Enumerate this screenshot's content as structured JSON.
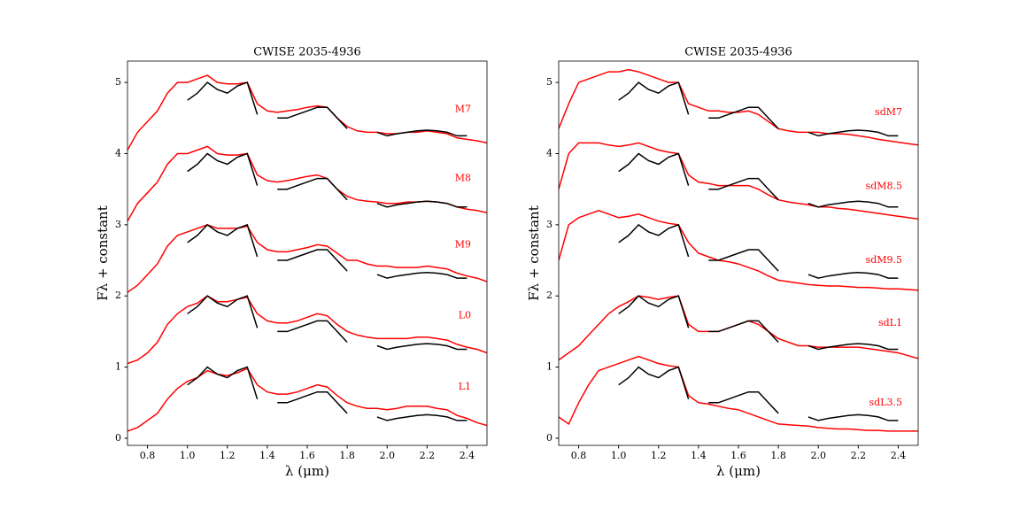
{
  "chart_data": [
    {
      "type": "line",
      "title": "CWISE 2035-4936",
      "xlabel": "λ (μm)",
      "ylabel": "Fλ  +  constant",
      "xlim": [
        0.7,
        2.5
      ],
      "ylim": [
        -0.1,
        5.3
      ],
      "xticks": [
        0.8,
        {
          "value": 1,
          "label": "1.0"
        },
        1.2,
        1.4,
        1.6,
        1.8,
        {
          "value": 2,
          "label": "2.0"
        },
        2.2,
        2.4
      ],
      "yticks": [
        0,
        1,
        2,
        3,
        4,
        5
      ],
      "x": [
        0.7,
        0.75,
        0.8,
        0.85,
        0.9,
        0.95,
        1.0,
        1.05,
        1.1,
        1.15,
        1.2,
        1.25,
        1.3,
        1.35,
        1.4,
        1.45,
        1.5,
        1.55,
        1.6,
        1.65,
        1.7,
        1.75,
        1.8,
        1.85,
        1.9,
        1.95,
        2.0,
        2.05,
        2.1,
        2.15,
        2.2,
        2.25,
        2.3,
        2.35,
        2.4,
        2.45,
        2.5
      ],
      "series": [
        {
          "name": "M7",
          "color": "#ff0000",
          "values": [
            4.05,
            4.3,
            4.45,
            4.6,
            4.85,
            5.0,
            5.0,
            5.05,
            5.1,
            5.0,
            4.98,
            4.98,
            5.0,
            4.7,
            4.6,
            4.58,
            4.6,
            4.62,
            4.65,
            4.67,
            4.65,
            4.5,
            4.38,
            4.32,
            4.3,
            4.3,
            4.28,
            4.28,
            4.3,
            4.3,
            4.32,
            4.3,
            4.28,
            4.22,
            4.2,
            4.18,
            4.15
          ]
        },
        {
          "name": "M8",
          "color": "#ff0000",
          "values": [
            3.05,
            3.3,
            3.45,
            3.6,
            3.85,
            4.0,
            4.0,
            4.05,
            4.1,
            4.0,
            3.98,
            3.98,
            4.0,
            3.7,
            3.62,
            3.6,
            3.62,
            3.65,
            3.68,
            3.7,
            3.65,
            3.5,
            3.4,
            3.35,
            3.33,
            3.32,
            3.3,
            3.3,
            3.32,
            3.32,
            3.33,
            3.32,
            3.3,
            3.25,
            3.22,
            3.2,
            3.17
          ]
        },
        {
          "name": "M9",
          "color": "#ff0000",
          "values": [
            2.05,
            2.15,
            2.3,
            2.45,
            2.7,
            2.85,
            2.9,
            2.95,
            3.0,
            2.95,
            2.95,
            2.95,
            2.98,
            2.75,
            2.65,
            2.62,
            2.62,
            2.65,
            2.68,
            2.72,
            2.7,
            2.6,
            2.5,
            2.5,
            2.45,
            2.42,
            2.42,
            2.4,
            2.4,
            2.4,
            2.42,
            2.4,
            2.38,
            2.32,
            2.28,
            2.25,
            2.2
          ]
        },
        {
          "name": "L0",
          "color": "#ff0000",
          "values": [
            1.05,
            1.1,
            1.2,
            1.35,
            1.6,
            1.75,
            1.85,
            1.9,
            2.0,
            1.92,
            1.92,
            1.95,
            1.98,
            1.75,
            1.65,
            1.62,
            1.62,
            1.65,
            1.7,
            1.75,
            1.72,
            1.6,
            1.5,
            1.45,
            1.42,
            1.4,
            1.4,
            1.4,
            1.4,
            1.42,
            1.42,
            1.4,
            1.38,
            1.32,
            1.28,
            1.25,
            1.2
          ]
        },
        {
          "name": "L1",
          "color": "#ff0000",
          "values": [
            0.1,
            0.15,
            0.25,
            0.35,
            0.55,
            0.7,
            0.8,
            0.85,
            0.95,
            0.9,
            0.88,
            0.92,
            0.98,
            0.75,
            0.65,
            0.62,
            0.62,
            0.65,
            0.7,
            0.75,
            0.72,
            0.6,
            0.5,
            0.45,
            0.42,
            0.42,
            0.4,
            0.42,
            0.45,
            0.45,
            0.45,
            0.42,
            0.4,
            0.32,
            0.28,
            0.22,
            0.18
          ]
        },
        {
          "color": "#000000",
          "values": [
            null,
            null,
            null,
            null,
            null,
            null,
            4.75,
            4.85,
            5.0,
            4.9,
            4.85,
            4.95,
            5.0,
            4.55,
            null,
            4.5,
            4.5,
            4.55,
            4.6,
            4.65,
            4.65,
            4.5,
            4.35,
            null,
            null,
            4.3,
            4.25,
            4.28,
            4.3,
            4.32,
            4.33,
            4.32,
            4.3,
            4.25,
            4.25,
            null,
            null
          ]
        },
        {
          "color": "#000000",
          "values": [
            null,
            null,
            null,
            null,
            null,
            null,
            3.75,
            3.85,
            4.0,
            3.9,
            3.85,
            3.95,
            4.0,
            3.55,
            null,
            3.5,
            3.5,
            3.55,
            3.6,
            3.65,
            3.65,
            3.5,
            3.35,
            null,
            null,
            3.3,
            3.25,
            3.28,
            3.3,
            3.32,
            3.33,
            3.32,
            3.3,
            3.25,
            3.25,
            null,
            null
          ]
        },
        {
          "color": "#000000",
          "values": [
            null,
            null,
            null,
            null,
            null,
            null,
            2.75,
            2.85,
            3.0,
            2.9,
            2.85,
            2.95,
            3.0,
            2.55,
            null,
            2.5,
            2.5,
            2.55,
            2.6,
            2.65,
            2.65,
            2.5,
            2.35,
            null,
            null,
            2.3,
            2.25,
            2.28,
            2.3,
            2.32,
            2.33,
            2.32,
            2.3,
            2.25,
            2.25,
            null,
            null
          ]
        },
        {
          "color": "#000000",
          "values": [
            null,
            null,
            null,
            null,
            null,
            null,
            1.75,
            1.85,
            2.0,
            1.9,
            1.85,
            1.95,
            2.0,
            1.55,
            null,
            1.5,
            1.5,
            1.55,
            1.6,
            1.65,
            1.65,
            1.5,
            1.35,
            null,
            null,
            1.3,
            1.25,
            1.28,
            1.3,
            1.32,
            1.33,
            1.32,
            1.3,
            1.25,
            1.25,
            null,
            null
          ]
        },
        {
          "color": "#000000",
          "values": [
            null,
            null,
            null,
            null,
            null,
            null,
            0.75,
            0.85,
            1.0,
            0.9,
            0.85,
            0.95,
            1.0,
            0.55,
            null,
            0.5,
            0.5,
            0.55,
            0.6,
            0.65,
            0.65,
            0.5,
            0.35,
            null,
            null,
            0.3,
            0.25,
            0.28,
            0.3,
            0.32,
            0.33,
            0.32,
            0.3,
            0.25,
            0.25,
            null,
            null
          ]
        }
      ]
    },
    {
      "type": "line",
      "title": "CWISE 2035-4936",
      "xlabel": "λ (μm)",
      "ylabel": "Fλ  +  constant",
      "xlim": [
        0.7,
        2.5
      ],
      "ylim": [
        -0.1,
        5.3
      ],
      "xticks": [
        0.8,
        {
          "value": 1,
          "label": "1.0"
        },
        1.2,
        1.4,
        1.6,
        1.8,
        {
          "value": 2,
          "label": "2.0"
        },
        2.2,
        2.4
      ],
      "yticks": [
        0,
        1,
        2,
        3,
        4,
        5
      ],
      "x": [
        0.7,
        0.75,
        0.8,
        0.85,
        0.9,
        0.95,
        1.0,
        1.05,
        1.1,
        1.15,
        1.2,
        1.25,
        1.3,
        1.35,
        1.4,
        1.45,
        1.5,
        1.55,
        1.6,
        1.65,
        1.7,
        1.75,
        1.8,
        1.85,
        1.9,
        1.95,
        2.0,
        2.05,
        2.1,
        2.15,
        2.2,
        2.25,
        2.3,
        2.35,
        2.4,
        2.45,
        2.5
      ],
      "series": [
        {
          "name": "sdM7",
          "color": "#ff0000",
          "values": [
            4.35,
            4.7,
            5.0,
            5.05,
            5.1,
            5.15,
            5.15,
            5.18,
            5.15,
            5.1,
            5.05,
            5.0,
            5.0,
            4.7,
            4.65,
            4.6,
            4.6,
            4.58,
            4.58,
            4.6,
            4.55,
            4.45,
            4.35,
            4.32,
            4.3,
            4.3,
            4.3,
            4.28,
            4.28,
            4.27,
            4.25,
            4.23,
            4.2,
            4.18,
            4.16,
            4.14,
            4.12
          ]
        },
        {
          "name": "sdM8.5",
          "color": "#ff0000",
          "values": [
            3.5,
            4.0,
            4.15,
            4.15,
            4.15,
            4.12,
            4.1,
            4.12,
            4.15,
            4.1,
            4.05,
            4.02,
            4.0,
            3.7,
            3.6,
            3.58,
            3.55,
            3.55,
            3.55,
            3.55,
            3.5,
            3.42,
            3.35,
            3.32,
            3.3,
            3.28,
            3.25,
            3.25,
            3.23,
            3.22,
            3.2,
            3.18,
            3.16,
            3.14,
            3.12,
            3.1,
            3.08
          ]
        },
        {
          "name": "sdM9.5",
          "color": "#ff0000",
          "values": [
            2.5,
            3.0,
            3.1,
            3.15,
            3.2,
            3.15,
            3.1,
            3.12,
            3.15,
            3.1,
            3.05,
            3.02,
            3.0,
            2.75,
            2.6,
            2.55,
            2.5,
            2.48,
            2.45,
            2.4,
            2.35,
            2.28,
            2.22,
            2.2,
            2.18,
            2.16,
            2.15,
            2.14,
            2.14,
            2.13,
            2.12,
            2.12,
            2.11,
            2.1,
            2.1,
            2.09,
            2.08
          ]
        },
        {
          "name": "sdL1",
          "color": "#ff0000",
          "values": [
            1.1,
            1.2,
            1.3,
            1.45,
            1.6,
            1.75,
            1.85,
            1.92,
            2.0,
            1.98,
            1.95,
            1.98,
            2.0,
            1.6,
            1.5,
            1.5,
            1.5,
            1.55,
            1.6,
            1.65,
            1.6,
            1.5,
            1.4,
            1.35,
            1.3,
            1.3,
            1.28,
            1.28,
            1.28,
            1.28,
            1.28,
            1.26,
            1.24,
            1.22,
            1.2,
            1.16,
            1.12
          ]
        },
        {
          "name": "sdL3.5",
          "color": "#ff0000",
          "values": [
            0.3,
            0.2,
            0.5,
            0.75,
            0.95,
            1.0,
            1.05,
            1.1,
            1.15,
            1.1,
            1.05,
            1.02,
            1.0,
            0.6,
            0.5,
            0.48,
            0.45,
            0.42,
            0.4,
            0.35,
            0.3,
            0.25,
            0.2,
            0.19,
            0.18,
            0.17,
            0.15,
            0.14,
            0.13,
            0.13,
            0.12,
            0.11,
            0.11,
            0.1,
            0.1,
            0.1,
            0.1
          ]
        },
        {
          "color": "#000000",
          "values": [
            null,
            null,
            null,
            null,
            null,
            null,
            4.75,
            4.85,
            5.0,
            4.9,
            4.85,
            4.95,
            5.0,
            4.55,
            null,
            4.5,
            4.5,
            4.55,
            4.6,
            4.65,
            4.65,
            4.5,
            4.35,
            null,
            null,
            4.3,
            4.25,
            4.28,
            4.3,
            4.32,
            4.33,
            4.32,
            4.3,
            4.25,
            4.25,
            null,
            null
          ]
        },
        {
          "color": "#000000",
          "values": [
            null,
            null,
            null,
            null,
            null,
            null,
            3.75,
            3.85,
            4.0,
            3.9,
            3.85,
            3.95,
            4.0,
            3.55,
            null,
            3.5,
            3.5,
            3.55,
            3.6,
            3.65,
            3.65,
            3.5,
            3.35,
            null,
            null,
            3.3,
            3.25,
            3.28,
            3.3,
            3.32,
            3.33,
            3.32,
            3.3,
            3.25,
            3.25,
            null,
            null
          ]
        },
        {
          "color": "#000000",
          "values": [
            null,
            null,
            null,
            null,
            null,
            null,
            2.75,
            2.85,
            3.0,
            2.9,
            2.85,
            2.95,
            3.0,
            2.55,
            null,
            2.5,
            2.5,
            2.55,
            2.6,
            2.65,
            2.65,
            2.5,
            2.35,
            null,
            null,
            2.3,
            2.25,
            2.28,
            2.3,
            2.32,
            2.33,
            2.32,
            2.3,
            2.25,
            2.25,
            null,
            null
          ]
        },
        {
          "color": "#000000",
          "values": [
            null,
            null,
            null,
            null,
            null,
            null,
            1.75,
            1.85,
            2.0,
            1.9,
            1.85,
            1.95,
            2.0,
            1.55,
            null,
            1.5,
            1.5,
            1.55,
            1.6,
            1.65,
            1.65,
            1.5,
            1.35,
            null,
            null,
            1.3,
            1.25,
            1.28,
            1.3,
            1.32,
            1.33,
            1.32,
            1.3,
            1.25,
            1.25,
            null,
            null
          ]
        },
        {
          "color": "#000000",
          "values": [
            null,
            null,
            null,
            null,
            null,
            null,
            0.75,
            0.85,
            1.0,
            0.9,
            0.85,
            0.95,
            1.0,
            0.55,
            null,
            0.5,
            0.5,
            0.55,
            0.6,
            0.65,
            0.65,
            0.5,
            0.35,
            null,
            null,
            0.3,
            0.25,
            0.28,
            0.3,
            0.32,
            0.33,
            0.32,
            0.3,
            0.25,
            0.25,
            null,
            null
          ]
        }
      ]
    }
  ]
}
